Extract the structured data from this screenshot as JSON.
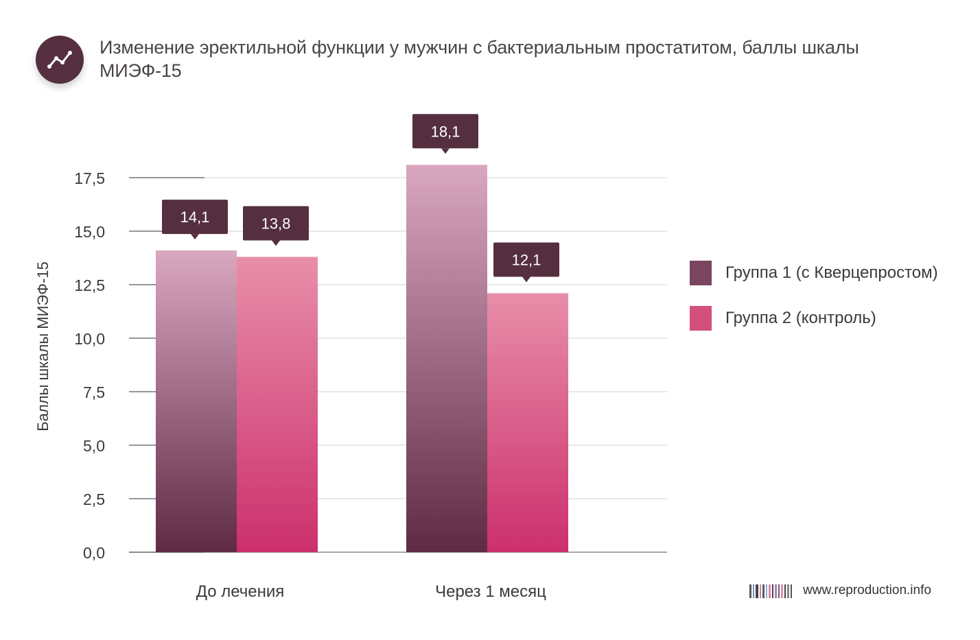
{
  "header": {
    "title": "Изменение эректильной функции у мужчин с бактериальным простатитом, баллы шкалы МИЭФ-15",
    "icon": "trend-line-icon"
  },
  "chart_data": {
    "type": "bar",
    "title": "Изменение эректильной функции у мужчин с бактериальным простатитом, баллы шкалы МИЭФ-15",
    "ylabel": "Баллы шкалы МИЭФ-15",
    "xlabel": "",
    "categories": [
      "До лечения",
      "Через 1 месяц"
    ],
    "series": [
      {
        "name": "Группа 1 (с Кверцепростом)",
        "values": [
          14.1,
          18.1
        ],
        "labels": [
          "14,1",
          "18,1"
        ],
        "color_top": "#d9a8c0",
        "color_bottom": "#5e2b43"
      },
      {
        "name": "Группа 2 (контроль)",
        "values": [
          13.8,
          12.1
        ],
        "labels": [
          "13,8",
          "12,1"
        ],
        "color_top": "#e88ea9",
        "color_bottom": "#cc306c"
      }
    ],
    "ylim": [
      0,
      17.5
    ],
    "yticks": [
      0,
      2.5,
      5,
      7.5,
      10,
      12.5,
      15,
      17.5
    ],
    "ytick_labels": [
      "0,0",
      "2,5",
      "5,0",
      "7,5",
      "10,0",
      "12,5",
      "15,0",
      "17,5"
    ],
    "grid": true,
    "legend_position": "right",
    "callout_color": "#552f3f"
  },
  "legend": {
    "items": [
      {
        "label": "Группа 1 (с Кверцепростом)",
        "color": "#7a4560"
      },
      {
        "label": "Группа 2 (контроль)",
        "color": "#d44f7e"
      }
    ]
  },
  "footer": {
    "site": "www.reproduction.info"
  }
}
